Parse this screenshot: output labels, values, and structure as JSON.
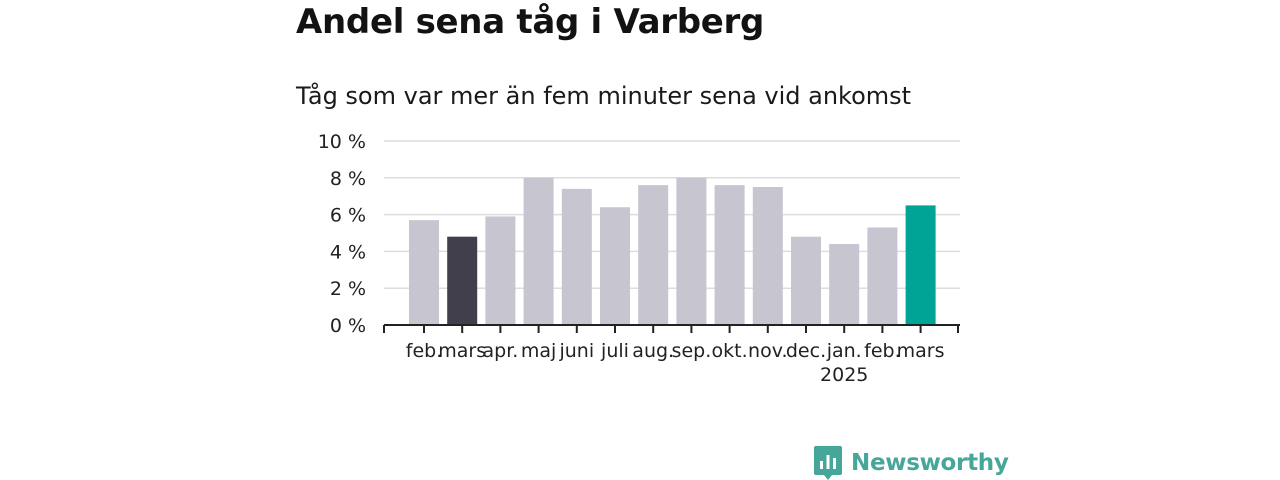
{
  "chart_data": {
    "type": "bar",
    "title": "Andel sena tåg i Varberg",
    "subtitle": "Tåg som var mer än fem minuter sena vid ankomst",
    "categories": [
      "feb.",
      "mars",
      "apr.",
      "maj",
      "juni",
      "juli",
      "aug.",
      "sep.",
      "okt.",
      "nov.",
      "dec.",
      "jan.",
      "feb.",
      "mars"
    ],
    "year_label": {
      "text": "2025",
      "category_index": 11
    },
    "series": [
      {
        "values": [
          5.7,
          4.8,
          5.9,
          8.0,
          7.4,
          6.4,
          7.6,
          8.0,
          7.6,
          7.5,
          4.8,
          4.4,
          5.3,
          6.5
        ]
      }
    ],
    "bar_colors": [
      "#c6c5d0",
      "#403f4b",
      "#c6c5d0",
      "#c6c5d0",
      "#c6c5d0",
      "#c6c5d0",
      "#c6c5d0",
      "#c6c5d0",
      "#c6c5d0",
      "#c6c5d0",
      "#c6c5d0",
      "#c6c5d0",
      "#c6c5d0",
      "#00a496"
    ],
    "y_ticks": [
      0,
      2,
      4,
      6,
      8,
      10
    ],
    "y_tick_labels": [
      "0 %",
      "2 %",
      "4 %",
      "6 %",
      "8 %",
      "10 %"
    ],
    "ylim": [
      0,
      10
    ],
    "grid": true,
    "colors": {
      "grid": "#dddddd",
      "axis": "#222222",
      "highlight_dark": "#403f4b",
      "highlight_accent": "#00a496",
      "default_bar": "#c6c5d0"
    }
  },
  "branding": {
    "name": "Newsworthy",
    "icon": "bar-chart-logo-icon",
    "color": "#46a699"
  }
}
